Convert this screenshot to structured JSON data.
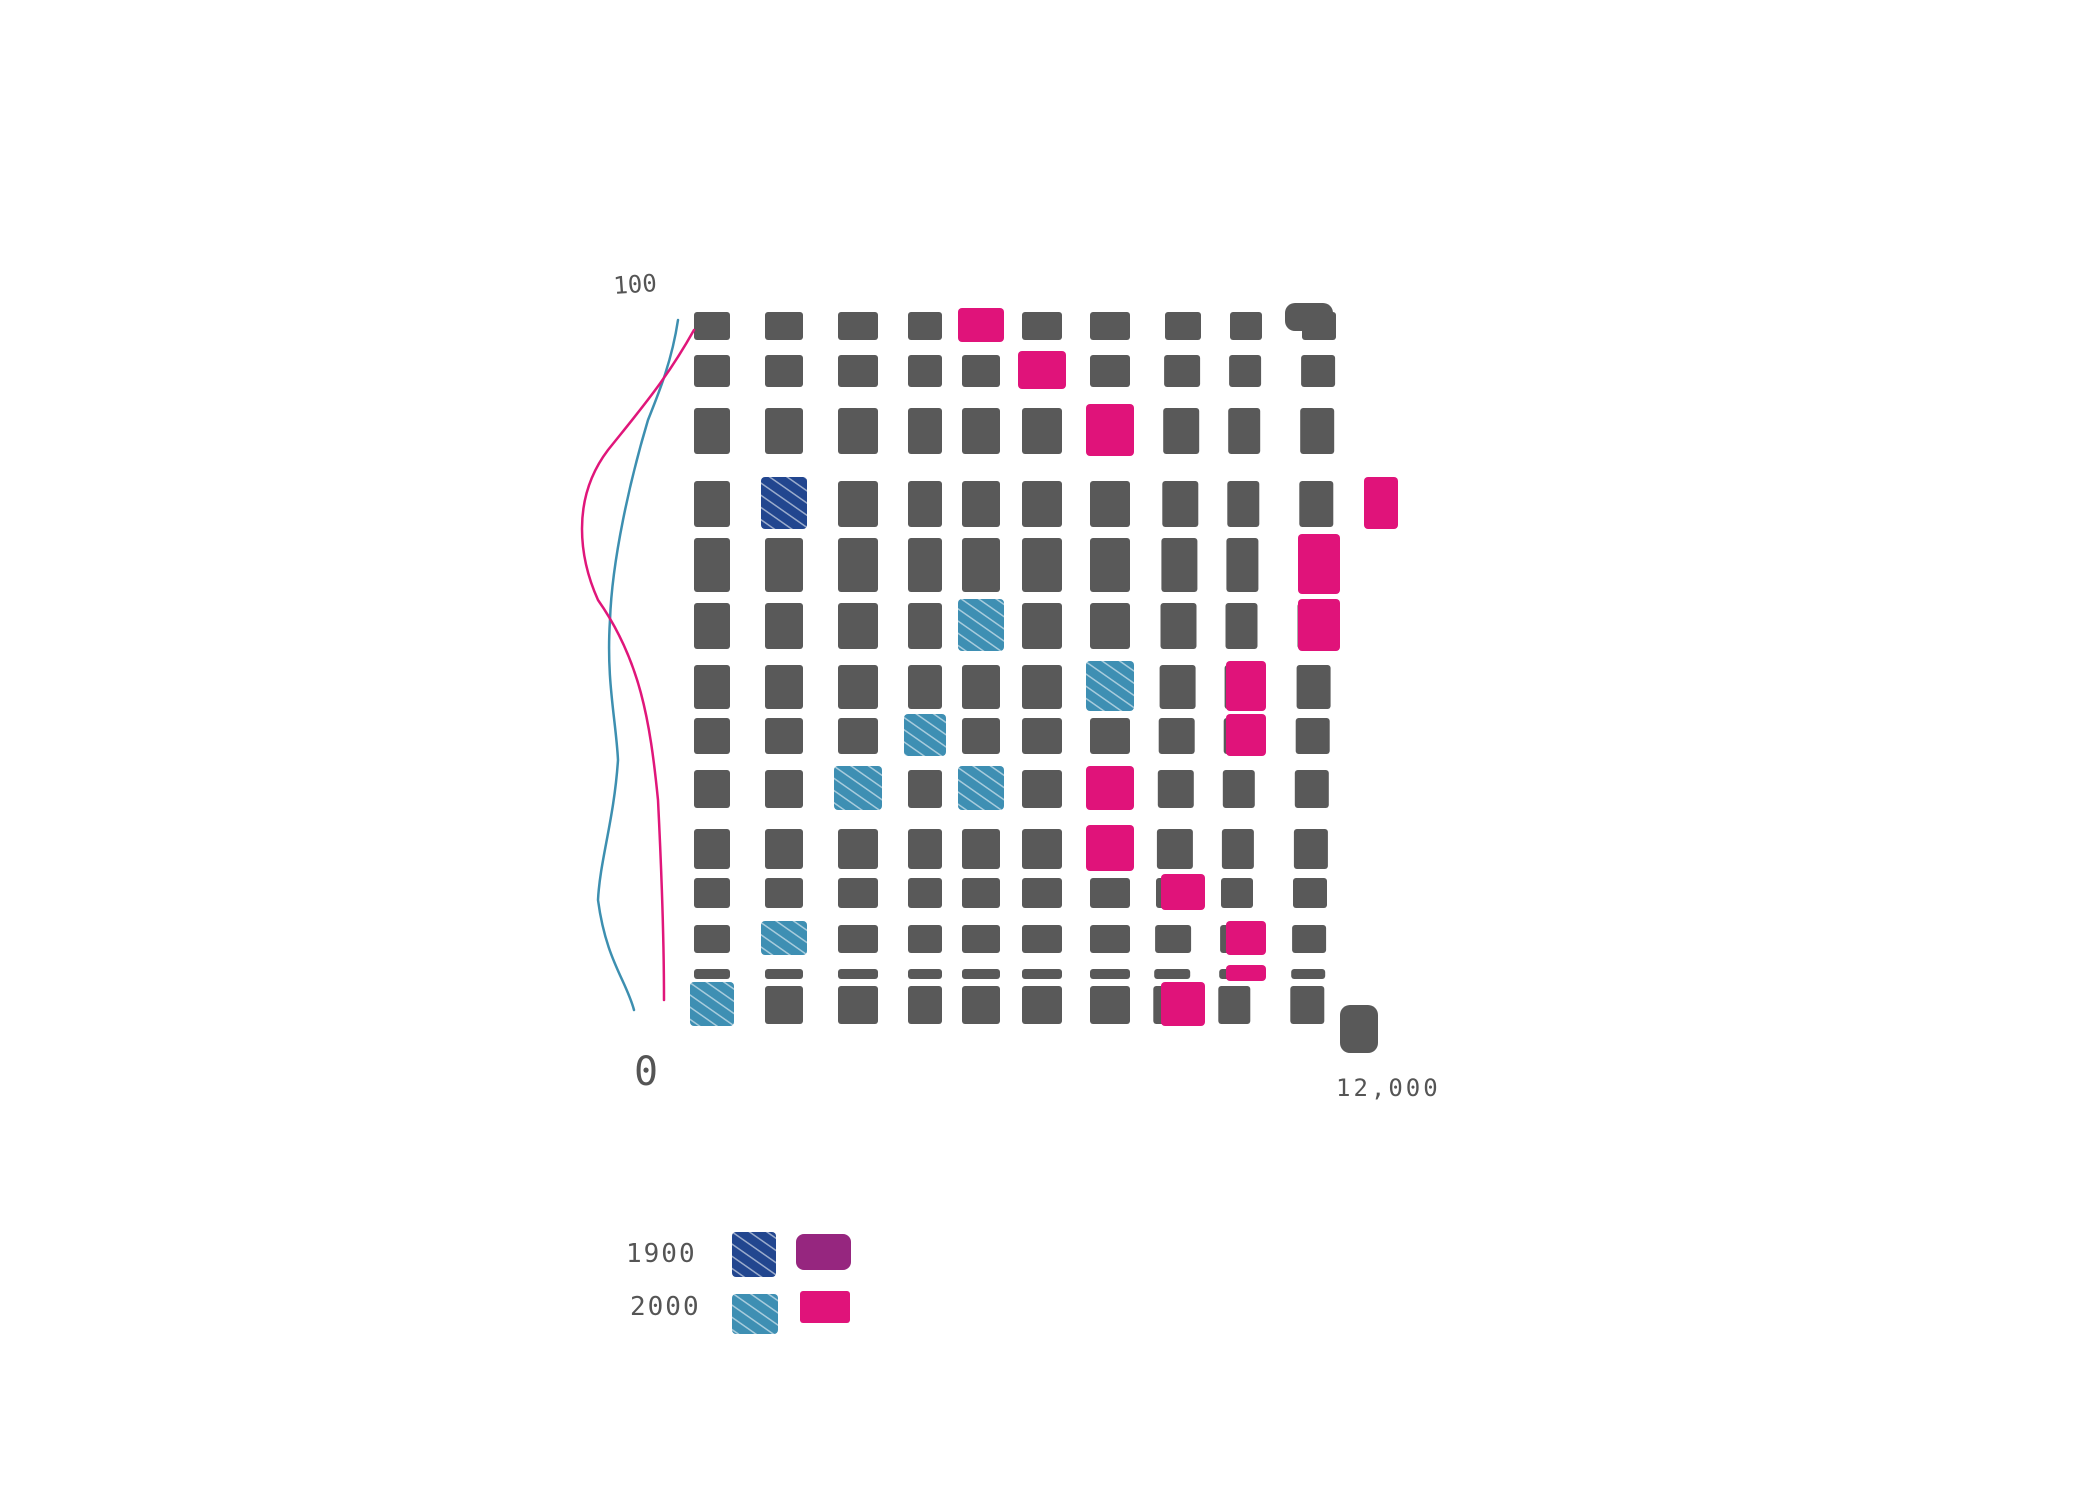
{
  "chart_data": {
    "type": "heatmap",
    "title": "",
    "xlabel": "",
    "ylabel": "",
    "x_axis": {
      "min_label": "0",
      "max_label": "12,000",
      "range": [
        0,
        12000
      ]
    },
    "y_axis": {
      "max_label": "100",
      "range": [
        0,
        100
      ]
    },
    "grid_rows": 14,
    "grid_cols": 10,
    "cell_color": "#595959",
    "highlighted_cells": [
      {
        "row": 0,
        "col": 4,
        "group": "pink-2000"
      },
      {
        "row": 1,
        "col": 5,
        "group": "pink-2000"
      },
      {
        "row": 2,
        "col": 6,
        "group": "pink-2000"
      },
      {
        "row": 3,
        "col": 1,
        "group": "blue-1900"
      },
      {
        "row": 3,
        "col": 10,
        "group": "pink-2000"
      },
      {
        "row": 4,
        "col": 9,
        "group": "pink-2000"
      },
      {
        "row": 5,
        "col": 9,
        "group": "pink-2000"
      },
      {
        "row": 5,
        "col": 4,
        "group": "blue-2000"
      },
      {
        "row": 6,
        "col": 6,
        "group": "blue-2000"
      },
      {
        "row": 6,
        "col": 8,
        "group": "pink-2000"
      },
      {
        "row": 7,
        "col": 8,
        "group": "pink-2000"
      },
      {
        "row": 7,
        "col": 3,
        "group": "blue-2000"
      },
      {
        "row": 8,
        "col": 2,
        "group": "blue-2000"
      },
      {
        "row": 8,
        "col": 4,
        "group": "blue-2000"
      },
      {
        "row": 8,
        "col": 6,
        "group": "pink-2000"
      },
      {
        "row": 9,
        "col": 6,
        "group": "pink-2000"
      },
      {
        "row": 10,
        "col": 7,
        "group": "pink-2000"
      },
      {
        "row": 11,
        "col": 1,
        "group": "blue-2000"
      },
      {
        "row": 11,
        "col": 8,
        "group": "pink-2000"
      },
      {
        "row": 12,
        "col": 8,
        "group": "pink-2000"
      },
      {
        "row": 13,
        "col": 0,
        "group": "blue-2000"
      },
      {
        "row": 13,
        "col": 7,
        "group": "pink-2000"
      }
    ],
    "side_curves": [
      {
        "group": "blue",
        "color": "#3d8fb0"
      },
      {
        "group": "pink",
        "color": "#e0167a"
      }
    ],
    "legend": {
      "placement": "bottom-left",
      "entries": [
        {
          "label": "1900",
          "blue_color": "#22468f",
          "pink_color": "#96267f"
        },
        {
          "label": "2000",
          "blue_color": "#3e8fb3",
          "pink_color": "#e0137a"
        }
      ]
    },
    "group_colors": {
      "blue-1900": "#22468f",
      "blue-2000": "#3e8fb3",
      "pink-1900": "#96267f",
      "pink-2000": "#e0137a"
    }
  }
}
